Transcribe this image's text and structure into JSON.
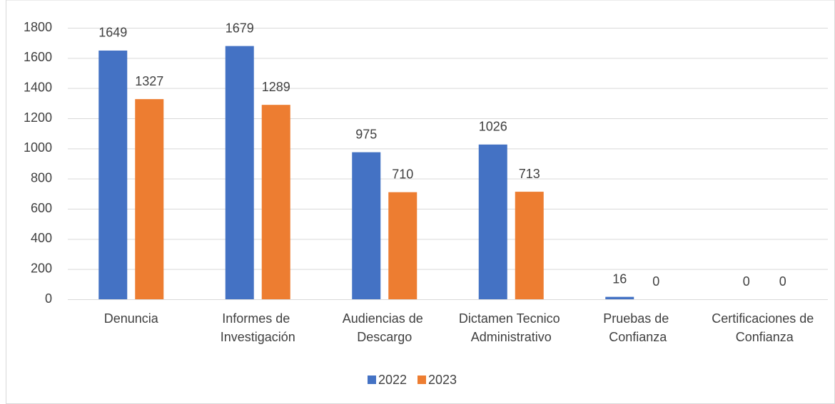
{
  "chart_data": {
    "type": "bar",
    "categories": [
      "Denuncia",
      "Informes de Investigación",
      "Audiencias de Descargo",
      "Dictamen Tecnico Administrativo",
      "Pruebas de Confianza",
      "Certificaciones de Confianza"
    ],
    "series": [
      {
        "name": "2022",
        "color": "#4472c4",
        "values": [
          1649,
          1679,
          975,
          1026,
          16,
          0
        ]
      },
      {
        "name": "2023",
        "color": "#ed7d31",
        "values": [
          1327,
          1289,
          710,
          713,
          0,
          0
        ]
      }
    ],
    "ylim": [
      0,
      1800
    ],
    "yticks": [
      0,
      200,
      400,
      600,
      800,
      1000,
      1200,
      1400,
      1600,
      1800
    ],
    "grid": true,
    "legend": "bottom"
  }
}
